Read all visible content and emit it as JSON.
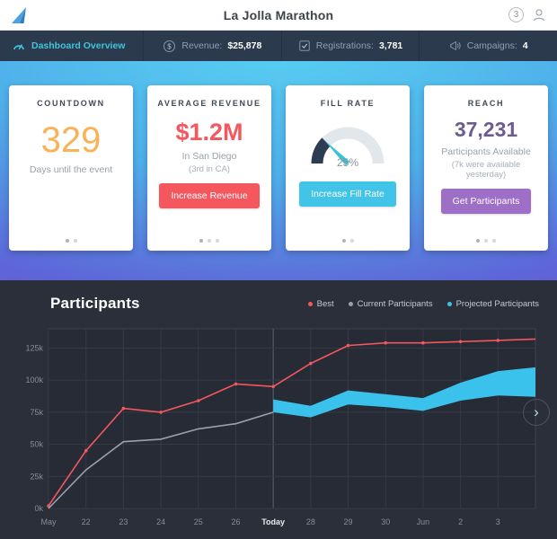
{
  "header": {
    "title": "La Jolla Marathon",
    "badge": "3"
  },
  "nav": {
    "dashboard": "Dashboard Overview",
    "stats": [
      {
        "icon": "dollar-icon",
        "label": "Revenue:",
        "value": "$25,878"
      },
      {
        "icon": "checkbox-icon",
        "label": "Registrations:",
        "value": "3,781"
      },
      {
        "icon": "megaphone-icon",
        "label": "Campaigns:",
        "value": "4"
      }
    ]
  },
  "cards": [
    {
      "title": "COUNTDOWN",
      "big": "329",
      "big_color": "#f9b257",
      "sub1": "Days until the event",
      "dots": 2
    },
    {
      "title": "AVERAGE REVENUE",
      "big": "$1.2M",
      "big_color": "#f4575e",
      "sub1": "In San Diego",
      "sub2": "(3rd in CA)",
      "button": "Increase Revenue",
      "button_color": "#f4575e",
      "dots": 3
    },
    {
      "title": "FILL RATE",
      "gauge": "25%",
      "gauge_fill": 25,
      "gauge_track_color": "#e2e7ec",
      "gauge_fill_color": "#2c3c52",
      "needle_color": "#35c3d8",
      "button": "Increase Fill Rate",
      "button_color": "#41c4e8",
      "dots": 2
    },
    {
      "title": "REACH",
      "big": "37,231",
      "big_color": "#6d5c90",
      "sub1": "Participants Available",
      "sub2": "(7k were available yesterday)",
      "button": "Get Participants",
      "button_color": "#9e6fc6",
      "dots": 3
    }
  ],
  "chart_data": {
    "type": "line",
    "title": "Participants",
    "categories": [
      "May",
      "22",
      "23",
      "24",
      "25",
      "26",
      "Today",
      "28",
      "29",
      "30",
      "Jun",
      "2",
      "3"
    ],
    "today_index": 6,
    "ylim": [
      0,
      140
    ],
    "yticks": [
      0,
      25,
      50,
      75,
      100,
      125
    ],
    "ytick_labels": [
      "0k",
      "25k",
      "50k",
      "75k",
      "100k",
      "125k"
    ],
    "grid": true,
    "legend_position": "top-right",
    "series": [
      {
        "name": "Best",
        "type": "line",
        "color": "#f4575e",
        "values": [
          2,
          45,
          78,
          75,
          84,
          97,
          95,
          113,
          127,
          129,
          129,
          130,
          131
        ]
      },
      {
        "name": "Current Participants",
        "type": "line",
        "color": "#9aa1a9",
        "values": [
          0,
          30,
          52,
          54,
          62,
          66,
          75,
          null,
          null,
          null,
          null,
          null,
          null
        ]
      },
      {
        "name": "Projected Participants",
        "type": "band",
        "color": "#3bc2ec",
        "upper": [
          null,
          null,
          null,
          null,
          null,
          null,
          85,
          80,
          92,
          89,
          86,
          98,
          107
        ],
        "lower": [
          null,
          null,
          null,
          null,
          null,
          null,
          75,
          71,
          81,
          79,
          76,
          84,
          88
        ]
      }
    ]
  }
}
